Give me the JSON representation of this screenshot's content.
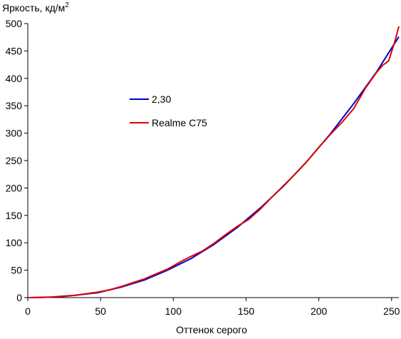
{
  "chart_data": {
    "type": "line",
    "title": "",
    "ylabel": "Яркость, кд/м",
    "ylabel_superscript": "2",
    "xlabel": "Оттенок серого",
    "xlim": [
      0,
      255
    ],
    "ylim": [
      0,
      500
    ],
    "x_ticks": [
      0,
      50,
      100,
      150,
      200,
      250
    ],
    "y_ticks": [
      0,
      50,
      100,
      150,
      200,
      250,
      300,
      350,
      400,
      450,
      500
    ],
    "grid": false,
    "legend": "upper-left-inside",
    "series": [
      {
        "name": "2,30",
        "color": "#0000cc",
        "points": [
          [
            0,
            0
          ],
          [
            16,
            1
          ],
          [
            32,
            4
          ],
          [
            48,
            9
          ],
          [
            64,
            19
          ],
          [
            80,
            32
          ],
          [
            96,
            50
          ],
          [
            112,
            71
          ],
          [
            128,
            97
          ],
          [
            144,
            128
          ],
          [
            160,
            164
          ],
          [
            176,
            204
          ],
          [
            192,
            249
          ],
          [
            208,
            299
          ],
          [
            224,
            354
          ],
          [
            240,
            413
          ],
          [
            255,
            476
          ]
        ]
      },
      {
        "name": "Realme C75",
        "color": "#dd0000",
        "points": [
          [
            0,
            0
          ],
          [
            8,
            0
          ],
          [
            16,
            1
          ],
          [
            24,
            2
          ],
          [
            32,
            4
          ],
          [
            40,
            7
          ],
          [
            48,
            10
          ],
          [
            56,
            14
          ],
          [
            64,
            20
          ],
          [
            72,
            27
          ],
          [
            80,
            34
          ],
          [
            88,
            43
          ],
          [
            96,
            52
          ],
          [
            104,
            64
          ],
          [
            112,
            75
          ],
          [
            120,
            85
          ],
          [
            128,
            99
          ],
          [
            136,
            115
          ],
          [
            144,
            130
          ],
          [
            152,
            143
          ],
          [
            160,
            162
          ],
          [
            168,
            184
          ],
          [
            176,
            205
          ],
          [
            184,
            226
          ],
          [
            192,
            249
          ],
          [
            200,
            274
          ],
          [
            208,
            298
          ],
          [
            216,
            320
          ],
          [
            224,
            345
          ],
          [
            232,
            382
          ],
          [
            240,
            412
          ],
          [
            244,
            424
          ],
          [
            248,
            432
          ],
          [
            252,
            465
          ],
          [
            255,
            495
          ]
        ]
      }
    ]
  }
}
